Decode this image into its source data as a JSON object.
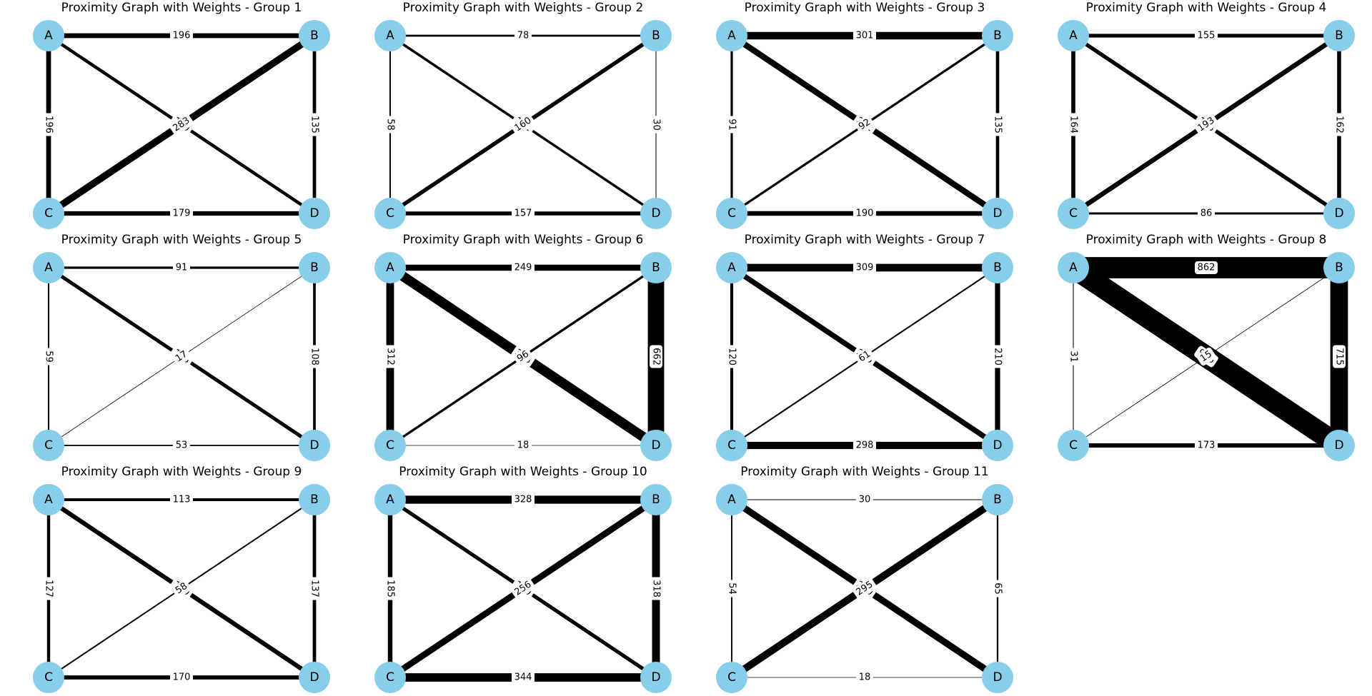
{
  "figure": {
    "node_color": "#87ceeb",
    "edge_color": "#000000",
    "panels": [
      {
        "title": "Proximity Graph with Weights - Group 1",
        "nodes": [
          "A",
          "B",
          "C",
          "D"
        ],
        "edges": [
          {
            "from": "A",
            "to": "B",
            "weight": 196
          },
          {
            "from": "A",
            "to": "C",
            "weight": 196
          },
          {
            "from": "A",
            "to": "D",
            "weight": 130
          },
          {
            "from": "B",
            "to": "C",
            "weight": 283
          },
          {
            "from": "B",
            "to": "D",
            "weight": 135
          },
          {
            "from": "C",
            "to": "D",
            "weight": 179
          }
        ]
      },
      {
        "title": "Proximity Graph with Weights - Group 2",
        "nodes": [
          "A",
          "B",
          "C",
          "D"
        ],
        "edges": [
          {
            "from": "A",
            "to": "B",
            "weight": 78
          },
          {
            "from": "A",
            "to": "C",
            "weight": 58
          },
          {
            "from": "A",
            "to": "D",
            "weight": 101
          },
          {
            "from": "B",
            "to": "C",
            "weight": 160
          },
          {
            "from": "B",
            "to": "D",
            "weight": 30
          },
          {
            "from": "C",
            "to": "D",
            "weight": 157
          }
        ]
      },
      {
        "title": "Proximity Graph with Weights - Group 3",
        "nodes": [
          "A",
          "B",
          "C",
          "D"
        ],
        "edges": [
          {
            "from": "A",
            "to": "B",
            "weight": 301
          },
          {
            "from": "A",
            "to": "C",
            "weight": 91
          },
          {
            "from": "A",
            "to": "D",
            "weight": 242
          },
          {
            "from": "B",
            "to": "C",
            "weight": 92
          },
          {
            "from": "B",
            "to": "D",
            "weight": 135
          },
          {
            "from": "C",
            "to": "D",
            "weight": 190
          }
        ]
      },
      {
        "title": "Proximity Graph with Weights - Group 4",
        "nodes": [
          "A",
          "B",
          "C",
          "D"
        ],
        "edges": [
          {
            "from": "A",
            "to": "B",
            "weight": 155
          },
          {
            "from": "A",
            "to": "C",
            "weight": 164
          },
          {
            "from": "A",
            "to": "D",
            "weight": 158
          },
          {
            "from": "B",
            "to": "C",
            "weight": 193
          },
          {
            "from": "B",
            "to": "D",
            "weight": 162
          },
          {
            "from": "C",
            "to": "D",
            "weight": 86
          }
        ]
      },
      {
        "title": "Proximity Graph with Weights - Group 5",
        "nodes": [
          "A",
          "B",
          "C",
          "D"
        ],
        "edges": [
          {
            "from": "A",
            "to": "B",
            "weight": 91
          },
          {
            "from": "A",
            "to": "C",
            "weight": 59
          },
          {
            "from": "A",
            "to": "D",
            "weight": 145
          },
          {
            "from": "B",
            "to": "C",
            "weight": 17
          },
          {
            "from": "B",
            "to": "D",
            "weight": 108
          },
          {
            "from": "C",
            "to": "D",
            "weight": 53
          }
        ]
      },
      {
        "title": "Proximity Graph with Weights - Group 6",
        "nodes": [
          "A",
          "B",
          "C",
          "D"
        ],
        "edges": [
          {
            "from": "A",
            "to": "B",
            "weight": 249
          },
          {
            "from": "A",
            "to": "C",
            "weight": 312
          },
          {
            "from": "A",
            "to": "D",
            "weight": 398
          },
          {
            "from": "B",
            "to": "C",
            "weight": 96
          },
          {
            "from": "B",
            "to": "D",
            "weight": 662
          },
          {
            "from": "C",
            "to": "D",
            "weight": 18
          }
        ]
      },
      {
        "title": "Proximity Graph with Weights - Group 7",
        "nodes": [
          "A",
          "B",
          "C",
          "D"
        ],
        "edges": [
          {
            "from": "A",
            "to": "B",
            "weight": 309
          },
          {
            "from": "A",
            "to": "C",
            "weight": 120
          },
          {
            "from": "A",
            "to": "D",
            "weight": 215
          },
          {
            "from": "B",
            "to": "C",
            "weight": 61
          },
          {
            "from": "B",
            "to": "D",
            "weight": 210
          },
          {
            "from": "C",
            "to": "D",
            "weight": 298
          }
        ]
      },
      {
        "title": "Proximity Graph with Weights - Group 8",
        "nodes": [
          "A",
          "B",
          "C",
          "D"
        ],
        "edges": [
          {
            "from": "A",
            "to": "B",
            "weight": 862
          },
          {
            "from": "A",
            "to": "C",
            "weight": 31
          },
          {
            "from": "A",
            "to": "D",
            "weight": 906
          },
          {
            "from": "B",
            "to": "C",
            "weight": 15
          },
          {
            "from": "B",
            "to": "D",
            "weight": 715
          },
          {
            "from": "C",
            "to": "D",
            "weight": 173
          }
        ]
      },
      {
        "title": "Proximity Graph with Weights - Group 9",
        "nodes": [
          "A",
          "B",
          "C",
          "D"
        ],
        "edges": [
          {
            "from": "A",
            "to": "B",
            "weight": 113
          },
          {
            "from": "A",
            "to": "C",
            "weight": 127
          },
          {
            "from": "A",
            "to": "D",
            "weight": 180
          },
          {
            "from": "B",
            "to": "C",
            "weight": 58
          },
          {
            "from": "B",
            "to": "D",
            "weight": 137
          },
          {
            "from": "C",
            "to": "D",
            "weight": 170
          }
        ]
      },
      {
        "title": "Proximity Graph with Weights - Group 10",
        "nodes": [
          "A",
          "B",
          "C",
          "D"
        ],
        "edges": [
          {
            "from": "A",
            "to": "B",
            "weight": 328
          },
          {
            "from": "A",
            "to": "C",
            "weight": 185
          },
          {
            "from": "A",
            "to": "D",
            "weight": 150
          },
          {
            "from": "B",
            "to": "C",
            "weight": 256
          },
          {
            "from": "B",
            "to": "D",
            "weight": 318
          },
          {
            "from": "C",
            "to": "D",
            "weight": 344
          }
        ]
      },
      {
        "title": "Proximity Graph with Weights - Group 11",
        "nodes": [
          "A",
          "B",
          "C",
          "D"
        ],
        "edges": [
          {
            "from": "A",
            "to": "B",
            "weight": 30
          },
          {
            "from": "A",
            "to": "C",
            "weight": 54
          },
          {
            "from": "A",
            "to": "D",
            "weight": 270
          },
          {
            "from": "B",
            "to": "C",
            "weight": 295
          },
          {
            "from": "B",
            "to": "D",
            "weight": 65
          },
          {
            "from": "C",
            "to": "D",
            "weight": 18
          }
        ]
      }
    ]
  }
}
